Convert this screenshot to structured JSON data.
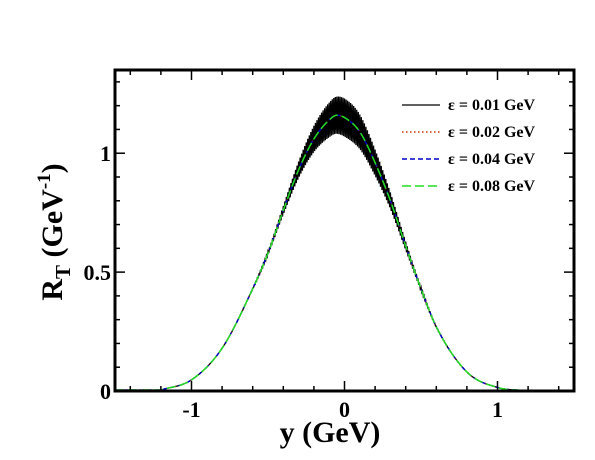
{
  "chart_data": {
    "type": "line",
    "xlabel": "y (GeV)",
    "ylabel": {
      "main": "R",
      "sub": "T",
      "unit": " (GeV",
      "sup": "-1",
      "close": ")"
    },
    "xlim": [
      -1.5,
      1.5
    ],
    "ylim": [
      0,
      1.35
    ],
    "xticks": [
      {
        "value": -1,
        "label": "-1"
      },
      {
        "value": 0,
        "label": "0"
      },
      {
        "value": 1,
        "label": "1"
      }
    ],
    "yticks": [
      {
        "value": 0,
        "label": "0"
      },
      {
        "value": 0.5,
        "label": "0.5"
      },
      {
        "value": 1,
        "label": "1"
      }
    ],
    "grid": false,
    "legend_position": "top-right",
    "series": [
      {
        "name": "ε = 0.01 GeV",
        "color": "#000000",
        "dash": "solid",
        "x": [
          -1.2,
          -1.0,
          -0.8,
          -0.6,
          -0.5,
          -0.4,
          -0.3,
          -0.2,
          -0.1,
          -0.05,
          0.0,
          0.1,
          0.2,
          0.3,
          0.4,
          0.5,
          0.6,
          0.8,
          1.0,
          1.2
        ],
        "y": [
          0.004,
          0.047,
          0.18,
          0.43,
          0.58,
          0.76,
          0.93,
          1.06,
          1.14,
          1.16,
          1.15,
          1.09,
          0.96,
          0.8,
          0.61,
          0.43,
          0.27,
          0.08,
          0.015,
          0.001
        ],
        "oscillation_amplitude": 0.08
      },
      {
        "name": "ε = 0.02 GeV",
        "color": "#cc3300",
        "dash": "dotted",
        "x": [
          -1.2,
          -1.0,
          -0.8,
          -0.6,
          -0.5,
          -0.4,
          -0.3,
          -0.2,
          -0.1,
          -0.05,
          0.0,
          0.1,
          0.2,
          0.3,
          0.4,
          0.5,
          0.6,
          0.8,
          1.0,
          1.2
        ],
        "y": [
          0.004,
          0.047,
          0.18,
          0.43,
          0.58,
          0.76,
          0.93,
          1.06,
          1.14,
          1.16,
          1.15,
          1.09,
          0.96,
          0.8,
          0.61,
          0.43,
          0.27,
          0.08,
          0.015,
          0.001
        ]
      },
      {
        "name": "ε = 0.04 GeV",
        "color": "#0000cc",
        "dash": "dashed",
        "x": [
          -1.2,
          -1.0,
          -0.8,
          -0.6,
          -0.5,
          -0.4,
          -0.3,
          -0.2,
          -0.1,
          -0.05,
          0.0,
          0.1,
          0.2,
          0.3,
          0.4,
          0.5,
          0.6,
          0.8,
          1.0,
          1.2
        ],
        "y": [
          0.004,
          0.047,
          0.18,
          0.43,
          0.58,
          0.76,
          0.93,
          1.06,
          1.14,
          1.16,
          1.15,
          1.09,
          0.96,
          0.8,
          0.61,
          0.43,
          0.27,
          0.08,
          0.015,
          0.001
        ]
      },
      {
        "name": "ε = 0.08 GeV",
        "color": "#22dd22",
        "dash": "longdash",
        "x": [
          -1.2,
          -1.0,
          -0.8,
          -0.6,
          -0.5,
          -0.4,
          -0.3,
          -0.2,
          -0.1,
          -0.05,
          0.0,
          0.1,
          0.2,
          0.3,
          0.4,
          0.5,
          0.6,
          0.8,
          1.0,
          1.2
        ],
        "y": [
          0.004,
          0.047,
          0.18,
          0.43,
          0.58,
          0.76,
          0.93,
          1.06,
          1.14,
          1.16,
          1.15,
          1.09,
          0.96,
          0.8,
          0.61,
          0.43,
          0.27,
          0.08,
          0.015,
          0.001
        ]
      }
    ]
  }
}
